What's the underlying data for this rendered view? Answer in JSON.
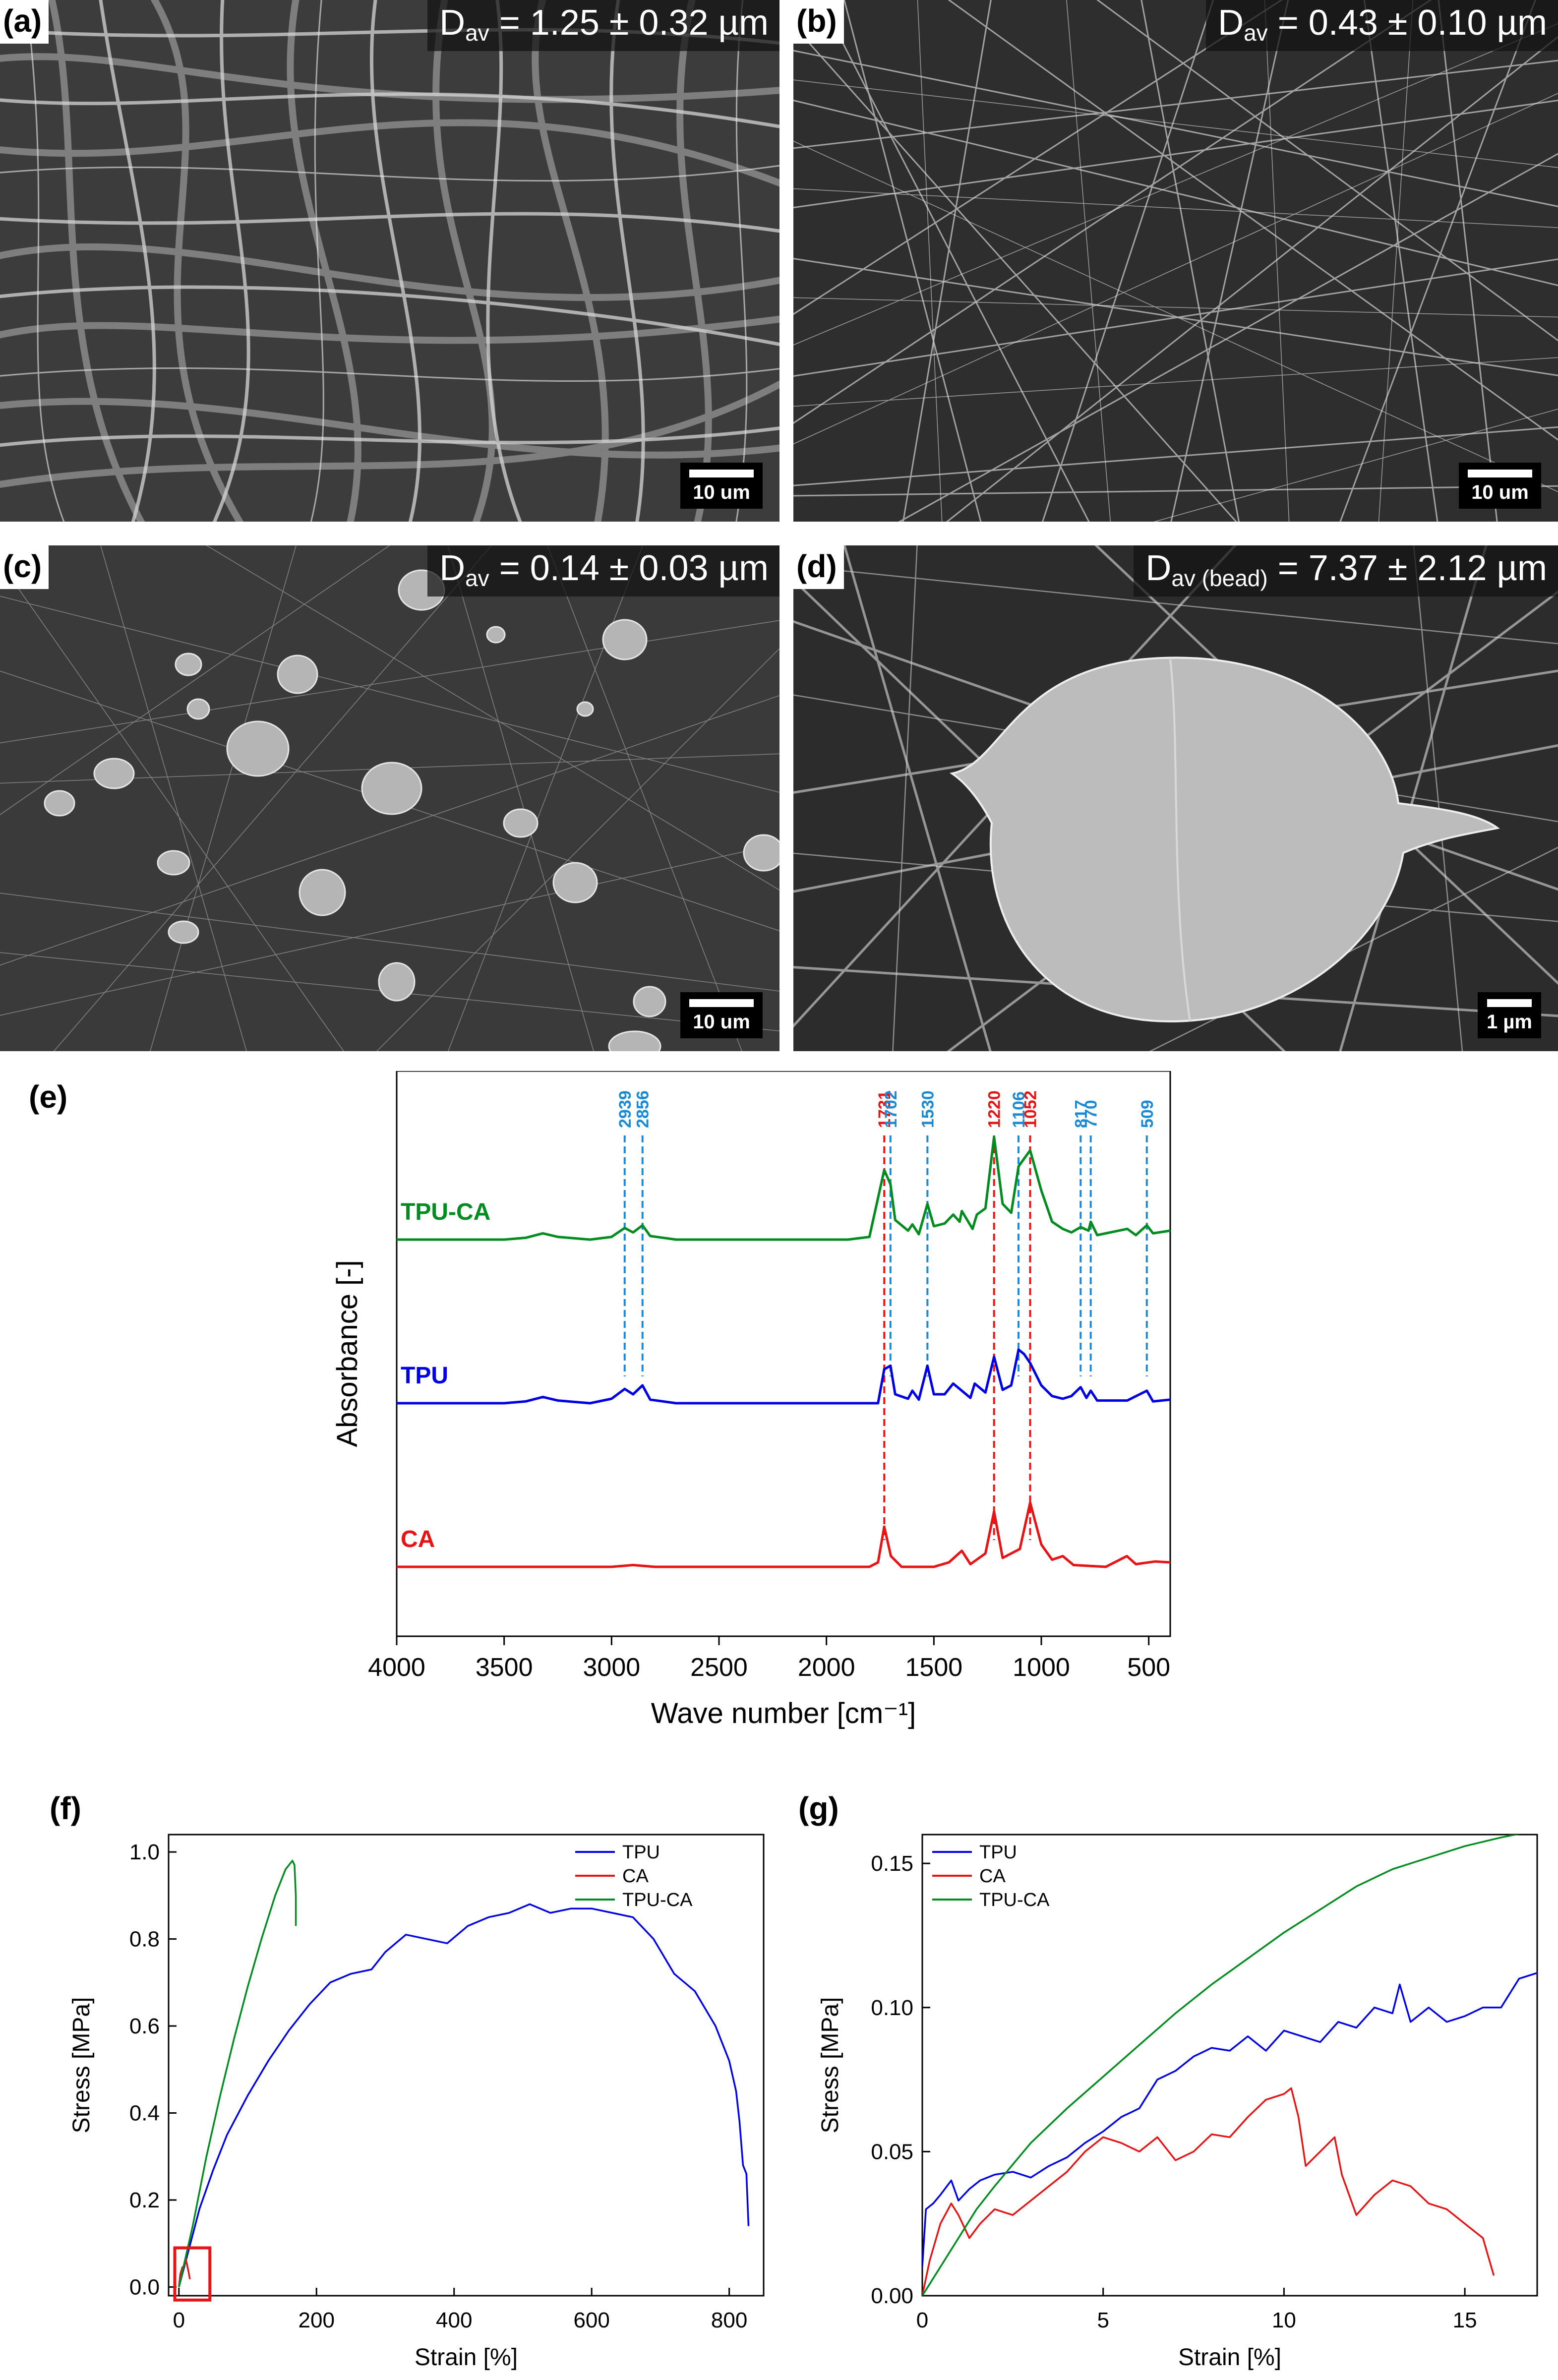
{
  "panels": {
    "a": {
      "label": "(a)",
      "dav_main": "D",
      "dav_sub": "av",
      "dav_value": " = 1.25 ± 0.32 µm",
      "scale": "10 um"
    },
    "b": {
      "label": "(b)",
      "dav_main": "D",
      "dav_sub": "av",
      "dav_value": " = 0.43 ± 0.10 µm",
      "scale": "10 um"
    },
    "c": {
      "label": "(c)",
      "dav_main": "D",
      "dav_sub": "av",
      "dav_value": " = 0.14 ± 0.03 µm",
      "scale": "10 um"
    },
    "d": {
      "label": "(d)",
      "dav_main": "D",
      "dav_sub": "av (bead)",
      "dav_value": " = 7.37 ± 2.12 µm",
      "scale": "1 µm"
    },
    "e": {
      "label": "(e)"
    },
    "f": {
      "label": "(f)"
    },
    "g": {
      "label": "(g)"
    }
  },
  "colors": {
    "tpu_ca": "#008c1e",
    "tpu": "#0000e6",
    "ca": "#e61414",
    "marker_blue": "#1a8ad4",
    "marker_red": "#e61414"
  },
  "chart_data": [
    {
      "panel": "e",
      "type": "line",
      "xlabel": "Wave number [cm⁻¹]",
      "ylabel": "Absorbance [-]",
      "xlim": [
        4000,
        400
      ],
      "xticks": [
        4000,
        3500,
        3000,
        2500,
        2000,
        1500,
        1000,
        500
      ],
      "series": [
        {
          "name": "TPU-CA",
          "color": "#008c1e",
          "offset": 2.0,
          "baseline": [
            [
              4000,
              0.0
            ],
            [
              3500,
              0.0
            ],
            [
              3400,
              0.02
            ],
            [
              3320,
              0.07
            ],
            [
              3250,
              0.03
            ],
            [
              3100,
              0.0
            ],
            [
              3000,
              0.03
            ],
            [
              2939,
              0.13
            ],
            [
              2900,
              0.08
            ],
            [
              2856,
              0.16
            ],
            [
              2820,
              0.04
            ],
            [
              2700,
              0.0
            ],
            [
              1900,
              0.0
            ],
            [
              1800,
              0.03
            ],
            [
              1731,
              0.78
            ],
            [
              1702,
              0.62
            ],
            [
              1680,
              0.22
            ],
            [
              1620,
              0.1
            ],
            [
              1600,
              0.17
            ],
            [
              1570,
              0.06
            ],
            [
              1530,
              0.4
            ],
            [
              1500,
              0.15
            ],
            [
              1450,
              0.18
            ],
            [
              1410,
              0.28
            ],
            [
              1380,
              0.2
            ],
            [
              1370,
              0.32
            ],
            [
              1320,
              0.12
            ],
            [
              1300,
              0.28
            ],
            [
              1260,
              0.35
            ],
            [
              1220,
              1.15
            ],
            [
              1180,
              0.4
            ],
            [
              1140,
              0.3
            ],
            [
              1106,
              0.82
            ],
            [
              1052,
              1.0
            ],
            [
              1000,
              0.55
            ],
            [
              950,
              0.2
            ],
            [
              900,
              0.12
            ],
            [
              860,
              0.08
            ],
            [
              817,
              0.14
            ],
            [
              780,
              0.1
            ],
            [
              770,
              0.2
            ],
            [
              740,
              0.05
            ],
            [
              600,
              0.12
            ],
            [
              560,
              0.05
            ],
            [
              509,
              0.16
            ],
            [
              480,
              0.07
            ],
            [
              400,
              0.1
            ]
          ]
        },
        {
          "name": "TPU",
          "color": "#0000e6",
          "offset": 1.0,
          "baseline": [
            [
              4000,
              0.0
            ],
            [
              3500,
              0.0
            ],
            [
              3400,
              0.02
            ],
            [
              3320,
              0.07
            ],
            [
              3250,
              0.03
            ],
            [
              3100,
              0.0
            ],
            [
              3000,
              0.05
            ],
            [
              2939,
              0.16
            ],
            [
              2900,
              0.1
            ],
            [
              2856,
              0.2
            ],
            [
              2820,
              0.04
            ],
            [
              2700,
              0.0
            ],
            [
              1760,
              0.0
            ],
            [
              1731,
              0.38
            ],
            [
              1702,
              0.42
            ],
            [
              1680,
              0.1
            ],
            [
              1620,
              0.05
            ],
            [
              1600,
              0.14
            ],
            [
              1570,
              0.04
            ],
            [
              1530,
              0.42
            ],
            [
              1500,
              0.1
            ],
            [
              1450,
              0.1
            ],
            [
              1410,
              0.22
            ],
            [
              1370,
              0.14
            ],
            [
              1330,
              0.06
            ],
            [
              1310,
              0.22
            ],
            [
              1260,
              0.12
            ],
            [
              1220,
              0.52
            ],
            [
              1180,
              0.15
            ],
            [
              1140,
              0.2
            ],
            [
              1106,
              0.6
            ],
            [
              1080,
              0.55
            ],
            [
              1052,
              0.45
            ],
            [
              1000,
              0.2
            ],
            [
              950,
              0.08
            ],
            [
              900,
              0.05
            ],
            [
              860,
              0.08
            ],
            [
              817,
              0.18
            ],
            [
              790,
              0.06
            ],
            [
              770,
              0.14
            ],
            [
              740,
              0.03
            ],
            [
              600,
              0.03
            ],
            [
              509,
              0.14
            ],
            [
              480,
              0.02
            ],
            [
              400,
              0.04
            ]
          ]
        },
        {
          "name": "CA",
          "color": "#e61414",
          "offset": 0.0,
          "baseline": [
            [
              4000,
              0.0
            ],
            [
              3000,
              0.0
            ],
            [
              2900,
              0.02
            ],
            [
              2800,
              0.0
            ],
            [
              1800,
              0.0
            ],
            [
              1760,
              0.05
            ],
            [
              1731,
              0.45
            ],
            [
              1700,
              0.12
            ],
            [
              1650,
              0.0
            ],
            [
              1500,
              0.0
            ],
            [
              1430,
              0.05
            ],
            [
              1370,
              0.18
            ],
            [
              1330,
              0.03
            ],
            [
              1260,
              0.15
            ],
            [
              1220,
              0.62
            ],
            [
              1180,
              0.1
            ],
            [
              1100,
              0.2
            ],
            [
              1052,
              0.72
            ],
            [
              1000,
              0.25
            ],
            [
              950,
              0.08
            ],
            [
              900,
              0.12
            ],
            [
              850,
              0.02
            ],
            [
              700,
              0.0
            ],
            [
              602,
              0.12
            ],
            [
              560,
              0.03
            ],
            [
              470,
              0.06
            ],
            [
              400,
              0.05
            ]
          ]
        }
      ],
      "markers": [
        {
          "wn": 2939,
          "label": "2939",
          "color": "blue"
        },
        {
          "wn": 2856,
          "label": "2856",
          "color": "blue"
        },
        {
          "wn": 1731,
          "label": "1731",
          "color": "red"
        },
        {
          "wn": 1702,
          "label": "1702",
          "color": "blue"
        },
        {
          "wn": 1530,
          "label": "1530",
          "color": "blue"
        },
        {
          "wn": 1220,
          "label": "1220",
          "color": "red"
        },
        {
          "wn": 1106,
          "label": "1106",
          "color": "blue"
        },
        {
          "wn": 1052,
          "label": "1052",
          "color": "red"
        },
        {
          "wn": 817,
          "label": "817",
          "color": "blue"
        },
        {
          "wn": 770,
          "label": "770",
          "color": "blue"
        },
        {
          "wn": 509,
          "label": "509",
          "color": "blue"
        }
      ]
    },
    {
      "panel": "f",
      "type": "line",
      "xlabel": "Strain [%]",
      "ylabel": "Stress [MPa]",
      "xlim": [
        -15,
        850
      ],
      "ylim": [
        -0.02,
        1.04
      ],
      "xticks": [
        0,
        200,
        400,
        600,
        800
      ],
      "yticks": [
        0.0,
        0.2,
        0.4,
        0.6,
        0.8,
        1.0
      ],
      "legend": "top-right",
      "highlight_box": {
        "x": [
          -6,
          45
        ],
        "y": [
          -0.03,
          0.09
        ]
      },
      "series": [
        {
          "name": "TPU",
          "color": "#0000e6",
          "x": [
            0,
            5,
            10,
            20,
            30,
            50,
            70,
            100,
            130,
            160,
            190,
            220,
            250,
            280,
            300,
            330,
            360,
            390,
            420,
            450,
            480,
            510,
            540,
            570,
            600,
            630,
            660,
            690,
            720,
            750,
            780,
            800,
            810,
            815,
            820,
            825,
            828
          ],
          "y": [
            0,
            0.03,
            0.06,
            0.12,
            0.18,
            0.27,
            0.35,
            0.44,
            0.52,
            0.59,
            0.65,
            0.7,
            0.72,
            0.73,
            0.77,
            0.81,
            0.8,
            0.79,
            0.83,
            0.85,
            0.86,
            0.88,
            0.86,
            0.87,
            0.87,
            0.86,
            0.85,
            0.8,
            0.72,
            0.68,
            0.6,
            0.52,
            0.45,
            0.38,
            0.28,
            0.26,
            0.14
          ]
        },
        {
          "name": "CA",
          "color": "#e61414",
          "x": [
            0,
            2,
            5,
            8,
            10,
            12,
            14,
            16
          ],
          "y": [
            0,
            0.03,
            0.045,
            0.05,
            0.065,
            0.05,
            0.035,
            0.018
          ]
        },
        {
          "name": "TPU-CA",
          "color": "#008c1e",
          "x": [
            0,
            10,
            20,
            40,
            60,
            80,
            100,
            120,
            140,
            155,
            165,
            168,
            170,
            170
          ],
          "y": [
            0,
            0.07,
            0.14,
            0.3,
            0.44,
            0.57,
            0.69,
            0.8,
            0.9,
            0.96,
            0.98,
            0.97,
            0.9,
            0.83
          ]
        }
      ]
    },
    {
      "panel": "g",
      "type": "line",
      "xlabel": "Strain [%]",
      "ylabel": "Stress [MPa]",
      "xlim": [
        0,
        17
      ],
      "ylim": [
        0,
        0.16
      ],
      "xticks": [
        0,
        5,
        10,
        15
      ],
      "yticks": [
        0.0,
        0.05,
        0.1,
        0.15
      ],
      "legend": "top-left",
      "series": [
        {
          "name": "TPU",
          "color": "#0000e6",
          "x": [
            0,
            0.1,
            0.3,
            0.5,
            0.8,
            1.0,
            1.3,
            1.6,
            2.0,
            2.5,
            3.0,
            3.5,
            4.0,
            4.5,
            5.0,
            5.5,
            6.0,
            6.5,
            7.0,
            7.5,
            8.0,
            8.5,
            9.0,
            9.5,
            10.0,
            10.5,
            11.0,
            11.5,
            12.0,
            12.5,
            13.0,
            13.2,
            13.5,
            14.0,
            14.5,
            15.0,
            15.5,
            16.0,
            16.5,
            17.0
          ],
          "y": [
            0.01,
            0.03,
            0.032,
            0.035,
            0.04,
            0.033,
            0.037,
            0.04,
            0.042,
            0.043,
            0.041,
            0.045,
            0.048,
            0.053,
            0.057,
            0.062,
            0.065,
            0.075,
            0.078,
            0.083,
            0.086,
            0.085,
            0.09,
            0.085,
            0.092,
            0.09,
            0.088,
            0.095,
            0.093,
            0.1,
            0.098,
            0.108,
            0.095,
            0.1,
            0.095,
            0.097,
            0.1,
            0.1,
            0.11,
            0.112
          ]
        },
        {
          "name": "CA",
          "color": "#e61414",
          "x": [
            0,
            0.2,
            0.5,
            0.8,
            1.0,
            1.3,
            1.6,
            2.0,
            2.5,
            3.0,
            3.5,
            4.0,
            4.5,
            5.0,
            5.5,
            6.0,
            6.5,
            7.0,
            7.5,
            8.0,
            8.5,
            9.0,
            9.5,
            10.0,
            10.2,
            10.4,
            10.6,
            11.0,
            11.4,
            11.6,
            12.0,
            12.5,
            13.0,
            13.5,
            14.0,
            14.5,
            15.0,
            15.5,
            15.8
          ],
          "y": [
            0.0,
            0.012,
            0.025,
            0.032,
            0.028,
            0.02,
            0.025,
            0.03,
            0.028,
            0.033,
            0.038,
            0.043,
            0.05,
            0.055,
            0.053,
            0.05,
            0.055,
            0.047,
            0.05,
            0.056,
            0.055,
            0.062,
            0.068,
            0.07,
            0.072,
            0.062,
            0.045,
            0.05,
            0.055,
            0.042,
            0.028,
            0.035,
            0.04,
            0.038,
            0.032,
            0.03,
            0.025,
            0.02,
            0.007
          ]
        },
        {
          "name": "TPU-CA",
          "color": "#008c1e",
          "x": [
            0,
            0.5,
            1.0,
            1.5,
            2.0,
            3.0,
            4.0,
            5.0,
            6.0,
            7.0,
            8.0,
            9.0,
            10.0,
            11.0,
            12.0,
            13.0,
            14.0,
            15.0,
            16.0,
            16.8
          ],
          "y": [
            0,
            0.01,
            0.02,
            0.03,
            0.038,
            0.053,
            0.065,
            0.076,
            0.087,
            0.098,
            0.108,
            0.117,
            0.126,
            0.134,
            0.142,
            0.148,
            0.152,
            0.156,
            0.159,
            0.161
          ]
        }
      ]
    }
  ]
}
